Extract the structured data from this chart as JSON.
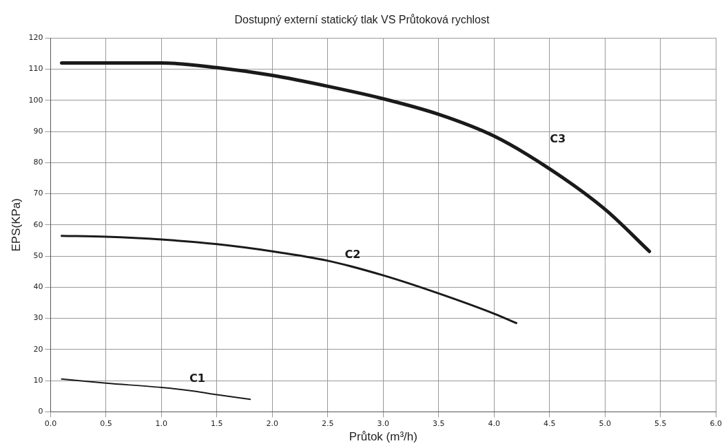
{
  "chart_data": {
    "type": "line",
    "title": "Dostupný externí statický tlak VS Průtoková rychlost",
    "xlabel": "Průtok (m³/h)",
    "ylabel": "EPS(KPa)",
    "series": [
      {
        "name": "C1",
        "color": "#1a1a1a",
        "x": [
          0.1,
          0.5,
          1.0,
          1.3,
          1.5,
          1.8
        ],
        "values": [
          10.5,
          9.2,
          7.8,
          6.6,
          5.5,
          4
        ]
      },
      {
        "name": "C2",
        "color": "#1a1a1a",
        "x": [
          0.1,
          0.5,
          1.0,
          1.5,
          2.0,
          2.5,
          3.0,
          3.5,
          4.0,
          4.2
        ],
        "values": [
          56.5,
          56.2,
          55.3,
          53.8,
          51.5,
          48.5,
          43.8,
          38,
          31.5,
          28.5
        ]
      },
      {
        "name": "C3",
        "color": "#1a1a1a",
        "x": [
          0.1,
          0.5,
          1.0,
          1.5,
          2.0,
          2.5,
          3.0,
          3.5,
          4.0,
          4.5,
          5.0,
          5.4
        ],
        "values": [
          112,
          112,
          112,
          110.5,
          108,
          104.5,
          100.5,
          95.5,
          88.5,
          78,
          65,
          51.5
        ]
      }
    ],
    "xlim": [
      0,
      6
    ],
    "xticks": [
      {
        "value": 0,
        "label": "0.0"
      },
      {
        "value": 0.5,
        "label": "0.5"
      },
      {
        "value": 1,
        "label": "1.0"
      },
      {
        "value": 1.5,
        "label": "1.5"
      },
      {
        "value": 2,
        "label": "2.0"
      },
      {
        "value": 2.5,
        "label": "2.5"
      },
      {
        "value": 3,
        "label": "3.0"
      },
      {
        "value": 3.5,
        "label": "3.5"
      },
      {
        "value": 4,
        "label": "4.0"
      },
      {
        "value": 4.5,
        "label": "4.5"
      },
      {
        "value": 5,
        "label": "5.0"
      },
      {
        "value": 5.5,
        "label": "5.5"
      },
      {
        "value": 6,
        "label": "6.0"
      }
    ],
    "ylim": [
      0,
      120
    ],
    "yticks": [
      0,
      10,
      20,
      30,
      40,
      50,
      60,
      70,
      80,
      90,
      100,
      110,
      120
    ],
    "grid": true,
    "legend": false,
    "marker": "none",
    "line_style": "solid"
  }
}
